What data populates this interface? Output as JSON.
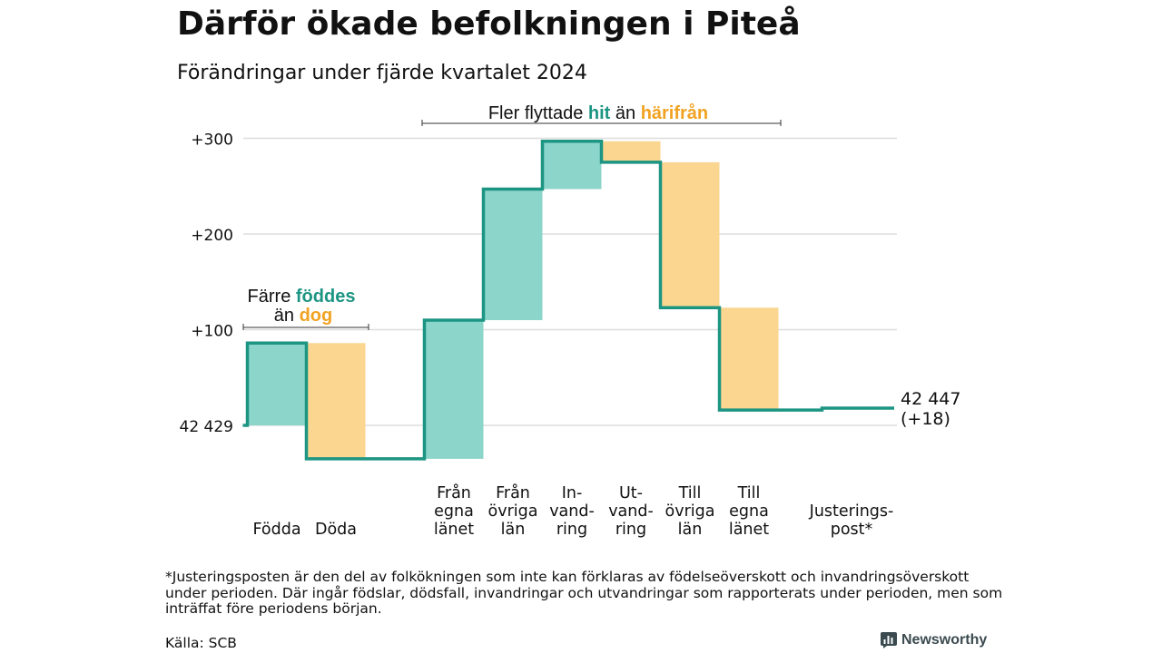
{
  "header": {
    "title": "Därför ökade befolkningen i Piteå",
    "subtitle": "Förändringar under fjärde kvartalet 2024"
  },
  "colors": {
    "increase": "#8cd5cb",
    "decrease": "#fad690",
    "line": "#1d9583",
    "grid": "#dddddd",
    "hit_text": "#1d9583",
    "harifran_text": "#f0a322"
  },
  "chart_data": {
    "type": "waterfall",
    "baseline_label": "42 429",
    "baseline_value": 42429,
    "end_label": "42 447",
    "end_change_label": "(+18)",
    "ylim": [
      -35,
      300
    ],
    "yticks": [
      {
        "value": 100,
        "label": "+100"
      },
      {
        "value": 200,
        "label": "+200"
      },
      {
        "value": 300,
        "label": "+300"
      }
    ],
    "steps": [
      {
        "category": "Födda",
        "change": 86
      },
      {
        "category": "Döda",
        "change": -121
      },
      {
        "category": "Från egna länet",
        "change": 145
      },
      {
        "category": "Från övriga län",
        "change": 137
      },
      {
        "category": "In-vandring",
        "change": 50
      },
      {
        "category": "Ut-vandring",
        "change": -22
      },
      {
        "category": "Till övriga län",
        "change": -152
      },
      {
        "category": "Till egna länet",
        "change": -107
      },
      {
        "category": "Justerings-post*",
        "change": 2
      }
    ],
    "category_labels": [
      [
        "Födda"
      ],
      [
        "Döda"
      ],
      [
        "Från",
        "egna",
        "länet"
      ],
      [
        "Från",
        "övriga",
        "län"
      ],
      [
        "In-",
        "vand-",
        "ring"
      ],
      [
        "Ut-",
        "vand-",
        "ring"
      ],
      [
        "Till",
        "övriga",
        "län"
      ],
      [
        "Till",
        "egna",
        "länet"
      ],
      [
        "Justerings-",
        "post*"
      ]
    ],
    "annotations": {
      "births_line1_a": "Färre",
      "births_line1_b": "föddes",
      "births_line2_a": "än",
      "births_line2_b": "dog",
      "migration_a": "Fler flyttade",
      "migration_b": "hit",
      "migration_c": "än",
      "migration_d": "härifrån"
    }
  },
  "footnote": "*Justeringsposten är den del av folkökningen som inte kan förklaras av födelseöverskott och invandringsöverskott under perioden. Där ingår födslar, dödsfall, invandringar och utvandringar som rapporterats under perioden, men som inträffat före periodens början.",
  "source": "Källa: SCB",
  "brand": {
    "name": "Newsworthy",
    "icon": "bar-chart-icon"
  }
}
